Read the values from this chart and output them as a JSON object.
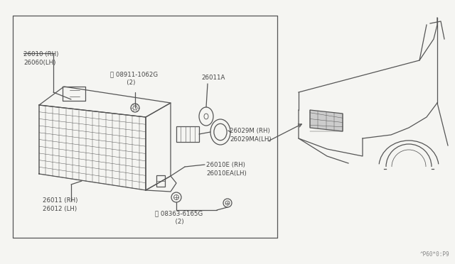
{
  "bg_color": "#f5f5f2",
  "line_color": "#555555",
  "text_color": "#444444",
  "page_code": "^P60*0:P9",
  "labels": {
    "top_left_1": "26010 (RH)",
    "top_left_2": "26060(LH)",
    "nut_1": "Ⓝ 08911-1062G",
    "nut_2": "   (2)",
    "bulb": "26011A",
    "seal_1": "26029M (RH)",
    "seal_2": "26029MA(LH)",
    "lower_left_1": "26011 (RH)",
    "lower_left_2": "26012 (LH)",
    "right_lower_1": "26010E (RH)",
    "right_lower_2": "26010EA(LH)",
    "screw_1": "Ⓢ 08363-6165G",
    "screw_2": "      (2)"
  }
}
